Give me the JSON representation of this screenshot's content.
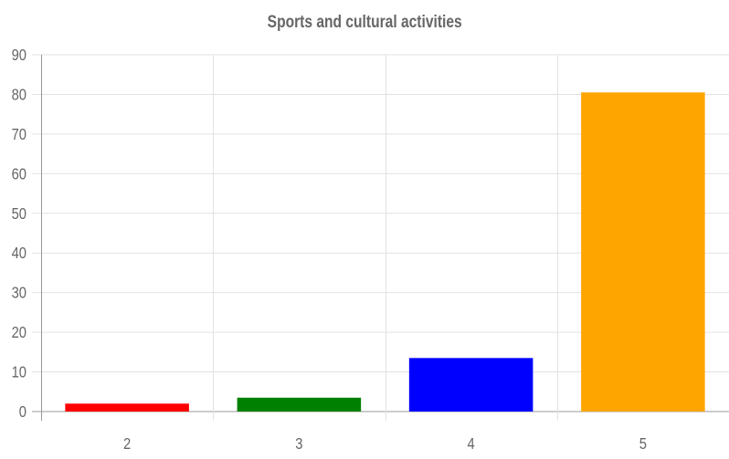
{
  "chart_data": {
    "type": "bar",
    "title": "Sports and cultural activities",
    "categories": [
      "2",
      "3",
      "4",
      "5"
    ],
    "values": [
      2,
      3.5,
      13.5,
      80.5
    ],
    "colors": [
      "#ff0000",
      "#008000",
      "#0000ff",
      "#ffa500"
    ],
    "ylim": [
      0,
      90
    ],
    "yticks": [
      0,
      10,
      20,
      30,
      40,
      50,
      60,
      70,
      80,
      90
    ],
    "xlabel": "",
    "ylabel": "",
    "grid": true,
    "legend": "none"
  }
}
